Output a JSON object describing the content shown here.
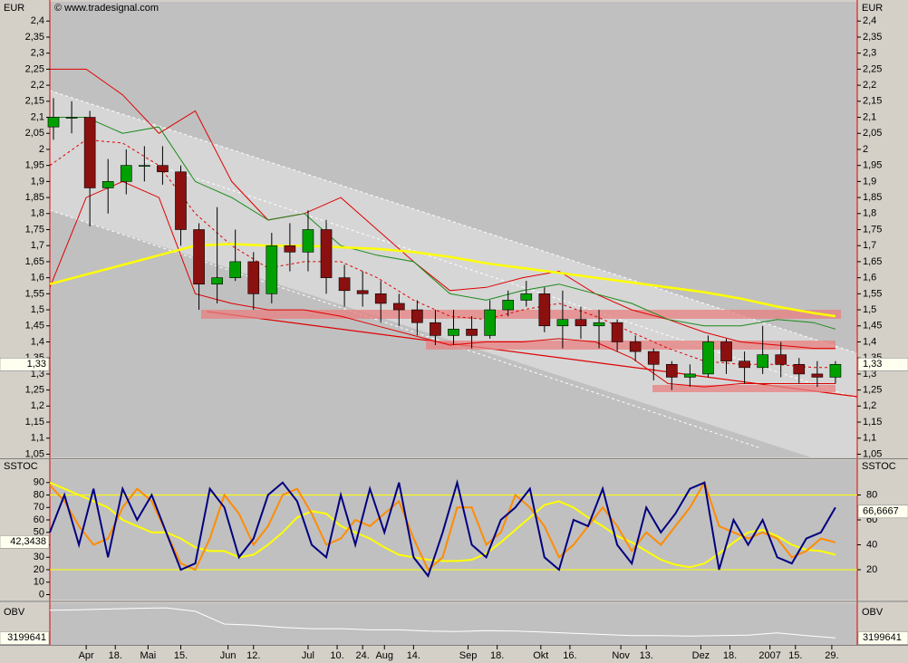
{
  "chart_data": [
    {
      "type": "candlestick",
      "title": "EUR",
      "watermark": "© www.tradesignal.com",
      "xlim": [
        0,
        222
      ],
      "ylim": [
        1.04,
        2.46
      ],
      "yticks": [
        {
          "value": 2.4,
          "label": "2,4"
        },
        {
          "value": 2.35,
          "label": "2,35"
        },
        {
          "value": 2.3,
          "label": "2,3"
        },
        {
          "value": 2.25,
          "label": "2,25"
        },
        {
          "value": 2.2,
          "label": "2,2"
        },
        {
          "value": 2.15,
          "label": "2,15"
        },
        {
          "value": 2.1,
          "label": "2,1"
        },
        {
          "value": 2.05,
          "label": "2,05"
        },
        2,
        {
          "value": 1.95,
          "label": "1,95"
        },
        {
          "value": 1.9,
          "label": "1,9"
        },
        {
          "value": 1.85,
          "label": "1,85"
        },
        {
          "value": 1.8,
          "label": "1,8"
        },
        {
          "value": 1.75,
          "label": "1,75"
        },
        {
          "value": 1.7,
          "label": "1,7"
        },
        {
          "value": 1.65,
          "label": "1,65"
        },
        {
          "value": 1.6,
          "label": "1,6"
        },
        {
          "value": 1.55,
          "label": "1,55"
        },
        {
          "value": 1.5,
          "label": "1,5"
        },
        {
          "value": 1.45,
          "label": "1,45"
        },
        {
          "value": 1.4,
          "label": "1,4"
        },
        {
          "value": 1.35,
          "label": "1,35"
        },
        {
          "value": 1.3,
          "label": "1,3"
        },
        {
          "value": 1.25,
          "label": "1,25"
        },
        {
          "value": 1.2,
          "label": "1,2"
        },
        {
          "value": 1.15,
          "label": "1,15"
        },
        {
          "value": 1.1,
          "label": "1,1"
        },
        {
          "value": 1.05,
          "label": "1,05"
        }
      ],
      "last": {
        "value": 1.33,
        "label": "1,33"
      },
      "up_color": "#00a000",
      "down_color": "#8b1010",
      "x": [
        1,
        6,
        11,
        16,
        21,
        26,
        31,
        36,
        41,
        46,
        51,
        56,
        61,
        66,
        71,
        76,
        81,
        86,
        91,
        96,
        101,
        106,
        111,
        116,
        121,
        126,
        131,
        136,
        141,
        146,
        151,
        156,
        161,
        166,
        171,
        176,
        181,
        186,
        191,
        196,
        201,
        206,
        211,
        216
      ],
      "open": [
        2.07,
        2.1,
        2.1,
        1.88,
        1.9,
        1.95,
        1.95,
        1.93,
        1.75,
        1.58,
        1.6,
        1.65,
        1.55,
        1.7,
        1.68,
        1.75,
        1.6,
        1.56,
        1.55,
        1.52,
        1.5,
        1.46,
        1.42,
        1.44,
        1.42,
        1.5,
        1.53,
        1.55,
        1.45,
        1.47,
        1.45,
        1.46,
        1.4,
        1.37,
        1.33,
        1.29,
        1.3,
        1.4,
        1.34,
        1.32,
        1.36,
        1.33,
        1.3,
        1.29
      ],
      "high": [
        2.16,
        2.15,
        2.12,
        1.97,
        2.0,
        2.01,
        2.01,
        1.95,
        1.77,
        1.82,
        1.75,
        1.68,
        1.74,
        1.77,
        1.81,
        1.78,
        1.64,
        1.62,
        1.59,
        1.55,
        1.53,
        1.5,
        1.5,
        1.48,
        1.53,
        1.56,
        1.59,
        1.57,
        1.56,
        1.51,
        1.5,
        1.47,
        1.42,
        1.38,
        1.34,
        1.33,
        1.42,
        1.41,
        1.37,
        1.45,
        1.4,
        1.35,
        1.34,
        1.34
      ],
      "low": [
        2.03,
        2.05,
        1.76,
        1.8,
        1.86,
        1.9,
        1.89,
        1.7,
        1.5,
        1.52,
        1.59,
        1.5,
        1.52,
        1.62,
        1.62,
        1.55,
        1.51,
        1.51,
        1.46,
        1.45,
        1.42,
        1.39,
        1.39,
        1.38,
        1.41,
        1.48,
        1.51,
        1.43,
        1.38,
        1.41,
        1.38,
        1.37,
        1.34,
        1.28,
        1.25,
        1.26,
        1.29,
        1.3,
        1.27,
        1.3,
        1.29,
        1.27,
        1.26,
        1.27
      ],
      "close": [
        2.1,
        2.1,
        1.88,
        1.9,
        1.95,
        1.95,
        1.93,
        1.75,
        1.58,
        1.6,
        1.65,
        1.55,
        1.7,
        1.68,
        1.75,
        1.6,
        1.56,
        1.55,
        1.52,
        1.5,
        1.46,
        1.42,
        1.44,
        1.42,
        1.5,
        1.53,
        1.55,
        1.45,
        1.47,
        1.45,
        1.46,
        1.4,
        1.37,
        1.33,
        1.29,
        1.3,
        1.4,
        1.34,
        1.32,
        1.36,
        1.33,
        1.3,
        1.29,
        1.33
      ],
      "overlay_x": [
        0,
        10,
        20,
        30,
        40,
        50,
        60,
        70,
        80,
        90,
        100,
        110,
        120,
        130,
        140,
        150,
        160,
        170,
        180,
        190,
        200,
        210,
        216
      ],
      "overlays": [
        {
          "color": "#e00000",
          "dashed": false,
          "values": [
            2.25,
            2.25,
            2.17,
            2.05,
            2.12,
            1.9,
            1.78,
            1.8,
            1.85,
            1.75,
            1.65,
            1.56,
            1.57,
            1.6,
            1.62,
            1.55,
            1.5,
            1.47,
            1.43,
            1.4,
            1.39,
            1.38,
            1.38
          ]
        },
        {
          "color": "#e00000",
          "dashed": false,
          "values": [
            1.57,
            1.85,
            1.9,
            1.85,
            1.55,
            1.52,
            1.5,
            1.5,
            1.48,
            1.45,
            1.42,
            1.39,
            1.4,
            1.4,
            1.41,
            1.4,
            1.35,
            1.27,
            1.26,
            1.27,
            1.27,
            1.27,
            1.27
          ]
        },
        {
          "color": "#e00000",
          "dashed": true,
          "values": [
            1.95,
            2.03,
            2.02,
            1.95,
            1.8,
            1.7,
            1.63,
            1.65,
            1.65,
            1.6,
            1.53,
            1.48,
            1.47,
            1.5,
            1.52,
            1.48,
            1.43,
            1.38,
            1.34,
            1.33,
            1.33,
            1.32,
            1.32
          ]
        },
        {
          "color": "#1a8a1a",
          "dashed": false,
          "values": [
            2.1,
            2.1,
            2.05,
            2.07,
            1.9,
            1.85,
            1.78,
            1.8,
            1.7,
            1.67,
            1.65,
            1.55,
            1.53,
            1.56,
            1.58,
            1.55,
            1.52,
            1.47,
            1.45,
            1.45,
            1.47,
            1.46,
            1.44
          ]
        },
        {
          "color": "#ffff00",
          "dashed": false,
          "values": [
            1.58,
            1.61,
            1.64,
            1.67,
            1.7,
            1.705,
            1.7,
            1.7,
            1.695,
            1.69,
            1.68,
            1.665,
            1.645,
            1.63,
            1.615,
            1.6,
            1.585,
            1.57,
            1.555,
            1.535,
            1.51,
            1.49,
            1.48
          ]
        }
      ]
    },
    {
      "type": "line",
      "title": "SSTOC",
      "xlim": [
        0,
        222
      ],
      "ylim": [
        -4,
        108
      ],
      "yticks": [
        0,
        10,
        20,
        30,
        40,
        50,
        60,
        70,
        80,
        90
      ],
      "y2lim": [
        -4,
        108
      ],
      "y2ticks": [
        20,
        40,
        60,
        80
      ],
      "hlines": [
        80,
        20
      ],
      "hline_color": "#ffff00",
      "left_value": {
        "value": 42.3438,
        "label": "42,3438"
      },
      "right_value": {
        "value": 66.6667,
        "label": "66,6667"
      },
      "x": [
        0,
        4,
        8,
        12,
        16,
        20,
        24,
        28,
        32,
        36,
        40,
        44,
        48,
        52,
        56,
        60,
        64,
        68,
        72,
        76,
        80,
        84,
        88,
        92,
        96,
        100,
        104,
        108,
        112,
        116,
        120,
        124,
        128,
        132,
        136,
        140,
        144,
        148,
        152,
        156,
        160,
        164,
        168,
        172,
        176,
        180,
        184,
        188,
        192,
        196,
        200,
        204,
        208,
        212,
        216
      ],
      "series": [
        {
          "color": "#ffff00",
          "values": [
            90,
            85,
            80,
            75,
            70,
            60,
            55,
            50,
            50,
            45,
            38,
            35,
            35,
            30,
            32,
            40,
            50,
            62,
            67,
            65,
            55,
            50,
            45,
            38,
            32,
            30,
            28,
            27,
            27,
            28,
            33,
            42,
            52,
            62,
            72,
            75,
            70,
            62,
            55,
            47,
            42,
            35,
            28,
            24,
            22,
            25,
            33,
            42,
            50,
            52,
            47,
            40,
            36,
            35,
            32
          ]
        },
        {
          "color": "#ff8c00",
          "values": [
            88,
            75,
            55,
            40,
            45,
            70,
            85,
            75,
            50,
            25,
            20,
            45,
            80,
            65,
            40,
            55,
            80,
            85,
            65,
            40,
            45,
            60,
            55,
            65,
            75,
            45,
            20,
            30,
            70,
            70,
            40,
            50,
            80,
            70,
            55,
            30,
            40,
            55,
            70,
            55,
            35,
            50,
            40,
            55,
            70,
            90,
            55,
            50,
            45,
            50,
            45,
            30,
            35,
            45,
            42
          ]
        },
        {
          "color": "#000080",
          "values": [
            50,
            80,
            40,
            85,
            30,
            85,
            60,
            80,
            50,
            20,
            25,
            85,
            70,
            30,
            45,
            80,
            90,
            75,
            40,
            30,
            80,
            40,
            85,
            50,
            90,
            30,
            15,
            50,
            90,
            40,
            30,
            60,
            70,
            85,
            30,
            20,
            60,
            55,
            85,
            40,
            25,
            70,
            50,
            65,
            85,
            90,
            20,
            60,
            40,
            60,
            30,
            25,
            45,
            50,
            70
          ]
        }
      ]
    },
    {
      "type": "line",
      "title": "OBV",
      "xlim": [
        0,
        222
      ],
      "ylim": [
        2900000,
        4700000
      ],
      "last": 3199641,
      "xticks": [
        {
          "value": 10,
          "label": "Apr"
        },
        {
          "value": 18,
          "label": "18."
        },
        {
          "value": 27,
          "label": "Mai"
        },
        {
          "value": 36,
          "label": "15."
        },
        {
          "value": 49,
          "label": "Jun"
        },
        {
          "value": 56,
          "label": "12."
        },
        {
          "value": 71,
          "label": "Jul"
        },
        {
          "value": 79,
          "label": "10."
        },
        {
          "value": 86,
          "label": "24."
        },
        {
          "value": 92,
          "label": "Aug"
        },
        {
          "value": 100,
          "label": "14."
        },
        {
          "value": 115,
          "label": "Sep"
        },
        {
          "value": 123,
          "label": "18."
        },
        {
          "value": 135,
          "label": "Okt"
        },
        {
          "value": 143,
          "label": "16."
        },
        {
          "value": 157,
          "label": "Nov"
        },
        {
          "value": 164,
          "label": "13."
        },
        {
          "value": 179,
          "label": "Dez"
        },
        {
          "value": 187,
          "label": "18."
        },
        {
          "value": 198,
          "label": "2007"
        },
        {
          "value": 205,
          "label": "15."
        },
        {
          "value": 215,
          "label": "29."
        }
      ],
      "x": [
        0,
        8,
        16,
        24,
        32,
        40,
        48,
        56,
        64,
        72,
        80,
        88,
        96,
        104,
        112,
        120,
        128,
        136,
        144,
        152,
        160,
        168,
        176,
        184,
        192,
        200,
        208,
        216
      ],
      "series": [
        {
          "color": "#ffffff",
          "values": [
            4400000,
            4420000,
            4450000,
            4480000,
            4500000,
            4350000,
            3800000,
            3750000,
            3650000,
            3600000,
            3600000,
            3550000,
            3550000,
            3500000,
            3480000,
            3520000,
            3500000,
            3450000,
            3400000,
            3350000,
            3300000,
            3300000,
            3280000,
            3300000,
            3320000,
            3420000,
            3300000,
            3199641
          ]
        }
      ]
    }
  ]
}
